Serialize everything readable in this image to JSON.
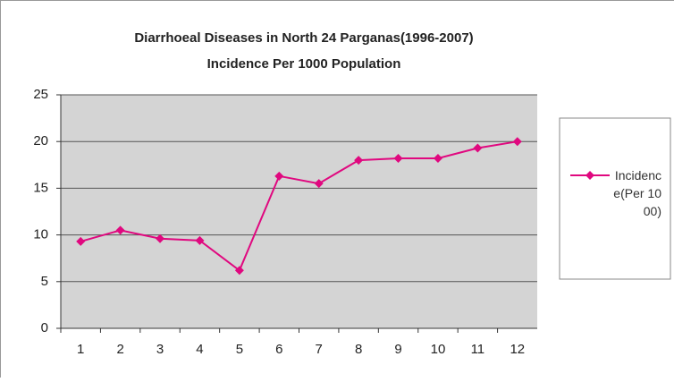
{
  "chart_data": {
    "type": "line",
    "title": "Diarrhoeal Diseases in North 24 Parganas(1996-2007)",
    "subtitle": "Incidence Per 1000 Population",
    "categories": [
      "1",
      "2",
      "3",
      "4",
      "5",
      "6",
      "7",
      "8",
      "9",
      "10",
      "11",
      "12"
    ],
    "series": [
      {
        "name": "Incidence(Per 1000)",
        "color": "#e0087f",
        "values": [
          9.3,
          10.5,
          9.6,
          9.4,
          6.2,
          16.3,
          15.5,
          18,
          18.2,
          18.2,
          19.3,
          20
        ]
      }
    ],
    "ylim": [
      0,
      25
    ],
    "yticks": [
      0,
      5,
      10,
      15,
      20,
      25
    ],
    "grid": true,
    "legend": "right"
  }
}
